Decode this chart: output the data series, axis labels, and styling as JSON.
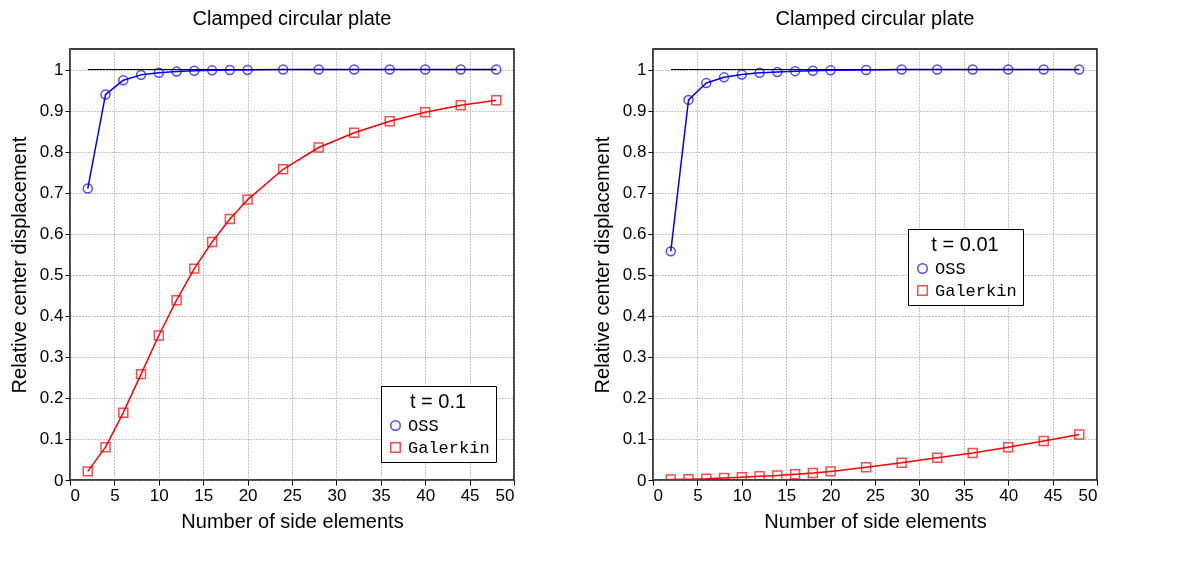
{
  "chart_data": [
    {
      "type": "line",
      "title": "Clamped circular plate",
      "xlabel": "Number of side elements",
      "ylabel": "Relative center displacement",
      "legend_title": "t = 0.1",
      "legend": "bottom right",
      "grid": true,
      "line_style": "solid",
      "xlim": [
        0,
        50
      ],
      "xticks": [
        0,
        5,
        10,
        15,
        20,
        25,
        30,
        35,
        40,
        45,
        50
      ],
      "ylim": [
        0,
        1.05
      ],
      "yticks": [
        0,
        0.1,
        0.2,
        0.3,
        0.4,
        0.5,
        0.6,
        0.7,
        0.8,
        0.9,
        1
      ],
      "x": [
        2,
        4,
        6,
        8,
        10,
        12,
        14,
        16,
        18,
        20,
        24,
        28,
        32,
        36,
        40,
        44,
        48
      ],
      "series": [
        {
          "color": "#000000",
          "marker": "none",
          "values": [
            1,
            1,
            1,
            1,
            1,
            1,
            1,
            1,
            1,
            1,
            1,
            1,
            1,
            1,
            1,
            1,
            1
          ]
        },
        {
          "name": "OSS",
          "color": "#0000ff",
          "marker": "circle",
          "values": [
            0.71,
            0.939,
            0.974,
            0.987,
            0.992,
            0.995,
            0.997,
            0.998,
            0.999,
            0.999,
            1,
            1,
            1,
            1,
            1,
            1,
            1
          ]
        },
        {
          "name": "Galerkin",
          "color": "#ff0000",
          "marker": "square",
          "values": [
            0.021,
            0.08,
            0.164,
            0.258,
            0.352,
            0.438,
            0.515,
            0.58,
            0.636,
            0.683,
            0.757,
            0.81,
            0.846,
            0.874,
            0.896,
            0.913,
            0.925
          ]
        }
      ]
    },
    {
      "type": "line",
      "title": "Clamped circular plate",
      "xlabel": "Number of side elements",
      "ylabel": "Relative center displacement",
      "legend_title": "t = 0.01",
      "legend": "right",
      "grid": true,
      "line_style": "solid",
      "xlim": [
        0,
        50
      ],
      "xticks": [
        0,
        5,
        10,
        15,
        20,
        25,
        30,
        35,
        40,
        45,
        50
      ],
      "ylim": [
        0,
        1.05
      ],
      "yticks": [
        0,
        0.1,
        0.2,
        0.3,
        0.4,
        0.5,
        0.6,
        0.7,
        0.8,
        0.9,
        1
      ],
      "x": [
        2,
        4,
        6,
        8,
        10,
        12,
        14,
        16,
        18,
        20,
        24,
        28,
        32,
        36,
        40,
        44,
        48
      ],
      "series": [
        {
          "color": "#000000",
          "marker": "none",
          "values": [
            1,
            1,
            1,
            1,
            1,
            1,
            1,
            1,
            1,
            1,
            1,
            1,
            1,
            1,
            1,
            1,
            1
          ]
        },
        {
          "name": "OSS",
          "color": "#0000ff",
          "marker": "circle",
          "values": [
            0.557,
            0.926,
            0.967,
            0.981,
            0.988,
            0.992,
            0.994,
            0.996,
            0.997,
            0.998,
            0.999,
            1,
            1,
            1,
            1,
            1,
            1
          ]
        },
        {
          "name": "Galerkin",
          "color": "#ff0000",
          "marker": "square",
          "values": [
            0.001,
            0.002,
            0.003,
            0.005,
            0.007,
            0.009,
            0.011,
            0.014,
            0.017,
            0.021,
            0.031,
            0.042,
            0.054,
            0.066,
            0.08,
            0.095,
            0.111
          ]
        }
      ]
    }
  ]
}
